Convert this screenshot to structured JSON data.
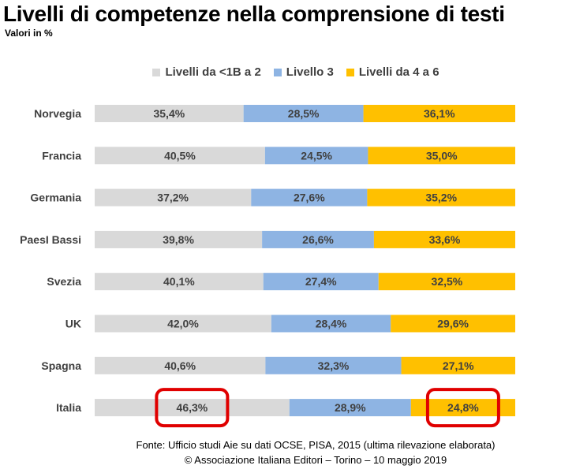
{
  "title": "Livelli di competenze nella comprensione di testi",
  "subtitle": "Valori in %",
  "source_line1": "Fonte:  Ufficio studi Aie su  dati  OCSE, PISA, 2015 (ultima rilevazione elaborata)",
  "source_line2": "© Associazione Italiana Editori – Torino – 10 maggio 2019",
  "colors": {
    "grey": "#d9d9d9",
    "blue": "#8eb4e3",
    "gold": "#ffc000",
    "highlight": "#e00000"
  },
  "chart_data": {
    "type": "bar",
    "stacked": true,
    "orientation": "horizontal",
    "normalized_to": 100,
    "categories": [
      "Norvegia",
      "Francia",
      "Germania",
      "PaesI Bassi",
      "Svezia",
      "UK",
      "Spagna",
      "Italia"
    ],
    "series": [
      {
        "name": "Livelli da <1B a 2",
        "color": "#d9d9d9",
        "values": [
          35.4,
          40.5,
          37.2,
          39.8,
          40.1,
          42.0,
          40.6,
          46.3
        ],
        "labels": [
          "35,4%",
          "40,5%",
          "37,2%",
          "39,8%",
          "40,1%",
          "42,0%",
          "40,6%",
          "46,3%"
        ]
      },
      {
        "name": "Livello 3",
        "color": "#8eb4e3",
        "values": [
          28.5,
          24.5,
          27.6,
          26.6,
          27.4,
          28.4,
          32.3,
          28.9
        ],
        "labels": [
          "28,5%",
          "24,5%",
          "27,6%",
          "26,6%",
          "27,4%",
          "28,4%",
          "32,3%",
          "28,9%"
        ]
      },
      {
        "name": "Livelli da 4 a 6",
        "color": "#ffc000",
        "values": [
          36.1,
          35.0,
          35.2,
          33.6,
          32.5,
          29.6,
          27.1,
          24.8
        ],
        "labels": [
          "36,1%",
          "35,0%",
          "35,2%",
          "33,6%",
          "32,5%",
          "29,6%",
          "27,1%",
          "24,8%"
        ]
      }
    ],
    "legend_position": "top",
    "grid": false,
    "highlighted": [
      {
        "category": "Italia",
        "series": "Livelli da <1B a 2"
      },
      {
        "category": "Italia",
        "series": "Livelli da 4 a 6"
      }
    ]
  }
}
